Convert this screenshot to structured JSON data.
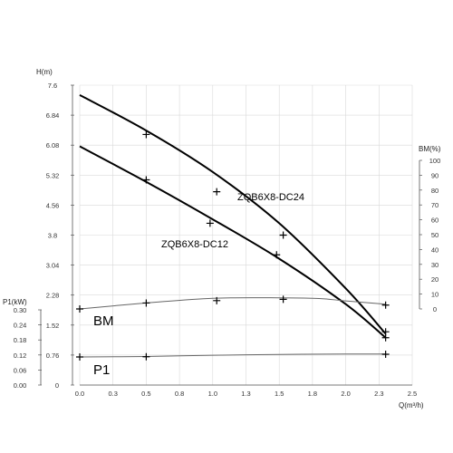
{
  "chart_data": {
    "type": "line",
    "grid": true,
    "x": {
      "label": "Q(m³/h)",
      "range": [
        0,
        2.5
      ],
      "ticks": [
        "0.0",
        "0.3",
        "0.5",
        "0.8",
        "1.0",
        "1.3",
        "1.5",
        "1.8",
        "2.0",
        "2.3",
        "2.5"
      ]
    },
    "axes": {
      "H": {
        "label": "H(m)",
        "range": [
          0,
          7.6
        ],
        "ticks": [
          "0",
          "0.76",
          "1.52",
          "2.28",
          "3.04",
          "3.8",
          "4.56",
          "5.32",
          "6.08",
          "6.84",
          "7.6"
        ]
      },
      "P1": {
        "label": "P1(kW)",
        "range": [
          0,
          0.3
        ],
        "ticks": [
          "0.00",
          "0.06",
          "0.12",
          "0.18",
          "0.24",
          "0.30"
        ]
      },
      "BM": {
        "label": "BM(%)",
        "range": [
          0,
          100
        ],
        "ticks": [
          "0",
          "10",
          "20",
          "30",
          "40",
          "50",
          "60",
          "70",
          "80",
          "90",
          "100"
        ]
      }
    },
    "series": [
      {
        "name": "ZQB6X8-DC24",
        "axis": "H",
        "stroke": "#000000",
        "width": 2,
        "x": [
          0,
          0.5,
          1.0,
          1.5,
          2.0,
          2.3
        ],
        "y": [
          7.35,
          6.45,
          5.4,
          4.1,
          2.45,
          1.3
        ],
        "markers": [
          [
            0.5,
            6.35
          ],
          [
            1.03,
            4.9
          ],
          [
            1.53,
            3.8
          ],
          [
            2.3,
            1.35
          ]
        ]
      },
      {
        "name": "ZQB6X8-DC12",
        "axis": "H",
        "stroke": "#000000",
        "width": 2,
        "x": [
          0,
          0.5,
          1.0,
          1.5,
          2.0,
          2.3
        ],
        "y": [
          6.05,
          5.15,
          4.2,
          3.2,
          2.05,
          1.2
        ],
        "markers": [
          [
            0.5,
            5.2
          ],
          [
            0.98,
            4.1
          ],
          [
            1.48,
            3.3
          ],
          [
            2.3,
            1.2
          ]
        ]
      },
      {
        "name": "BM",
        "axis": "BM",
        "stroke": "#666666",
        "width": 1,
        "x": [
          0,
          0.5,
          1.0,
          1.5,
          1.8,
          2.0,
          2.3
        ],
        "y": [
          0,
          4,
          7.2,
          7.5,
          7,
          5.4,
          3.2
        ],
        "markers": [
          [
            0,
            0
          ],
          [
            0.5,
            4
          ],
          [
            1.03,
            5.6
          ],
          [
            1.53,
            6.5
          ],
          [
            2.3,
            2.6
          ]
        ]
      },
      {
        "name": "P1",
        "axis": "P1",
        "stroke": "#666666",
        "width": 1,
        "x": [
          0,
          0.5,
          1.0,
          1.5,
          2.0,
          2.3
        ],
        "y": [
          0.112,
          0.114,
          0.119,
          0.122,
          0.124,
          0.124
        ],
        "markers": [
          [
            0,
            0.112
          ],
          [
            0.5,
            0.113
          ],
          [
            2.3,
            0.123
          ]
        ]
      }
    ],
    "labels": {
      "dc24": "ZQB6X8-DC24",
      "dc12": "ZQB6X8-DC12",
      "bm": "BM",
      "p1": "P1"
    }
  }
}
